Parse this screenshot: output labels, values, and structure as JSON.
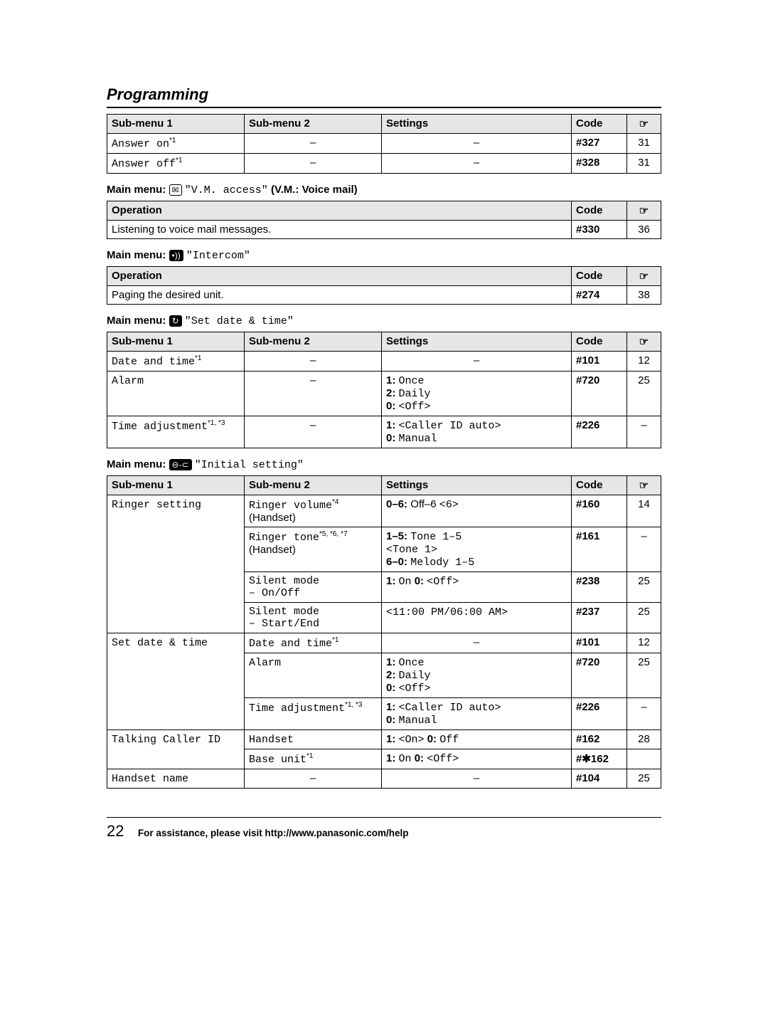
{
  "page_title": "Programming",
  "page_number": "22",
  "footer_text": "For assistance, please visit http://www.panasonic.com/help",
  "hand_glyph": "☞",
  "table1": {
    "headers": [
      "Sub-menu 1",
      "Sub-menu 2",
      "Settings",
      "Code"
    ],
    "rows": [
      {
        "sub1": "Answer on",
        "sub1_sup": "*1",
        "sub2": "–",
        "settings": "–",
        "code": "#327",
        "page": "31"
      },
      {
        "sub1": "Answer off",
        "sub1_sup": "*1",
        "sub2": "–",
        "settings": "–",
        "code": "#328",
        "page": "31"
      }
    ]
  },
  "menu_vm": {
    "label": "Main menu:",
    "icon_text": "✉",
    "mono": "\"V.M. access\"",
    "suffix": " (V.M.: Voice mail)"
  },
  "table_vm": {
    "headers": [
      "Operation",
      "Code"
    ],
    "rows": [
      {
        "op": "Listening to voice mail messages.",
        "code": "#330",
        "page": "36"
      }
    ]
  },
  "menu_intercom": {
    "label": "Main menu:",
    "icon_text": "•))",
    "mono": "\"Intercom\""
  },
  "table_intercom": {
    "headers": [
      "Operation",
      "Code"
    ],
    "rows": [
      {
        "op": "Paging the desired unit.",
        "code": "#274",
        "page": "38"
      }
    ]
  },
  "menu_date": {
    "label": "Main menu:",
    "icon_text": "↻",
    "mono": "\"Set date & time\""
  },
  "table_date": {
    "headers": [
      "Sub-menu 1",
      "Sub-menu 2",
      "Settings",
      "Code"
    ],
    "rows": [
      {
        "sub1": "Date and time",
        "sub1_sup": "*1",
        "sub2": "–",
        "settings_html": "–",
        "code": "#101",
        "page": "12"
      },
      {
        "sub1": "Alarm",
        "sub1_sup": "",
        "sub2": "–",
        "settings_html": "<b>1:</b> <span class='mono'>Once</span><br><b>2:</b> <span class='mono'>Daily</span><br><b>0:</b> <span class='mono'>&lt;Off&gt;</span>",
        "code": "#720",
        "page": "25"
      },
      {
        "sub1": "Time adjustment",
        "sub1_sup": "*1, *3",
        "sub2": "–",
        "settings_html": "<b>1:</b> <span class='mono'>&lt;Caller ID auto&gt;</span><br><b>0:</b> <span class='mono'>Manual</span>",
        "code": "#226",
        "page": "–"
      }
    ]
  },
  "menu_init": {
    "label": "Main menu:",
    "icon_text": "⊖-⊂",
    "mono": "\"Initial setting\""
  },
  "table_init": {
    "headers": [
      "Sub-menu 1",
      "Sub-menu 2",
      "Settings",
      "Code"
    ]
  },
  "init_rows": {
    "r1_sub1": "Ringer setting",
    "r1_sub2a": "Ringer volume",
    "r1_sub2a_sup": "*4",
    "r1_sub2a_extra": "(Handset)",
    "r1_set": "<b>0–6:</b> Off–6 <span class='mono'>&lt;6&gt;</span>",
    "r1_code": "#160",
    "r1_page": "14",
    "r2_sub2a": "Ringer tone",
    "r2_sub2a_sup": "*5, *6, *7",
    "r2_sub2a_extra": "(Handset)",
    "r2_set": "<b>1–5:</b> <span class='mono'>Tone 1–5</span><br><span class='mono'>&lt;Tone 1&gt;</span><br><b>6–0:</b> <span class='mono'>Melody 1–5</span>",
    "r2_code": "#161",
    "r2_page": "–",
    "r3_sub2": "Silent mode<br>– On/Off",
    "r3_set": "<b>1:</b> <span class='mono'>On</span> <b>0:</b> <span class='mono'>&lt;Off&gt;</span>",
    "r3_code": "#238",
    "r3_page": "25",
    "r4_sub2": "Silent mode<br>– Start/End",
    "r4_set": "<span class='mono'>&lt;11:00 PM/06:00 AM&gt;</span>",
    "r4_code": "#237",
    "r4_page": "25",
    "r5_sub1": "Set date & time",
    "r5_sub2": "Date and time",
    "r5_sub2_sup": "*1",
    "r5_set": "–",
    "r5_code": "#101",
    "r5_page": "12",
    "r6_sub2": "Alarm",
    "r6_set": "<b>1:</b> <span class='mono'>Once</span><br><b>2:</b> <span class='mono'>Daily</span><br><b>0:</b> <span class='mono'>&lt;Off&gt;</span>",
    "r6_code": "#720",
    "r6_page": "25",
    "r7_sub2": "Time adjustment",
    "r7_sub2_sup": "*1, *3",
    "r7_set": "<b>1:</b> <span class='mono'>&lt;Caller ID auto&gt;</span><br><b>0:</b> <span class='mono'>Manual</span>",
    "r7_code": "#226",
    "r7_page": "–",
    "r8_sub1": "Talking Caller ID",
    "r8_sub2": "Handset",
    "r8_set": "<b>1:</b> <span class='mono'>&lt;On&gt;</span> <b>0:</b> <span class='mono'>Off</span>",
    "r8_code": "#162",
    "r8_page": "28",
    "r9_sub2": "Base unit",
    "r9_sub2_sup": "*1",
    "r9_set": "<b>1:</b> <span class='mono'>On</span> <b>0:</b> <span class='mono'>&lt;Off&gt;</span>",
    "r9_code": "#✱162",
    "r9_page": "",
    "r10_sub1": "Handset name",
    "r10_sub2": "–",
    "r10_set": "–",
    "r10_code": "#104",
    "r10_page": "25"
  }
}
